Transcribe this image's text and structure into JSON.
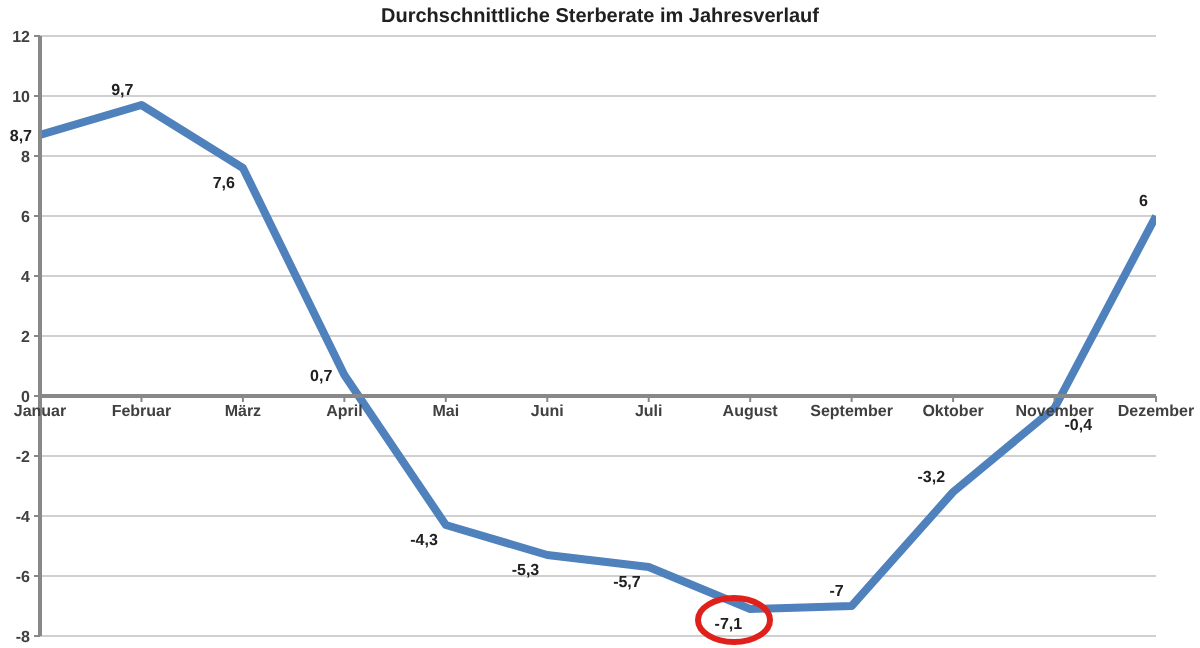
{
  "chart_data": {
    "type": "line",
    "title": "Durchschnittliche Sterberate im Jahresverlauf",
    "categories": [
      "Januar",
      "Februar",
      "März",
      "April",
      "Mai",
      "Juni",
      "Juli",
      "August",
      "September",
      "Oktober",
      "November",
      "Dezember"
    ],
    "series": [
      {
        "color": "#4f81bd",
        "values": [
          8.7,
          9.7,
          7.6,
          0.7,
          -4.3,
          -5.3,
          -5.7,
          -7.1,
          -7,
          -3.2,
          -0.4,
          6
        ],
        "value_labels": [
          "8,7",
          "9,7",
          "7,6",
          "0,7",
          "-4,3",
          "-5,3",
          "-5,7",
          "-7,1",
          "-7",
          "-3,2",
          "-0,4",
          "6"
        ]
      }
    ],
    "ylim": [
      -8,
      12
    ],
    "yticks": [
      -8,
      -6,
      -4,
      -2,
      0,
      2,
      4,
      6,
      8,
      10,
      12
    ],
    "grid": "y",
    "legend": false,
    "marker": "none",
    "line_style": "solid"
  }
}
